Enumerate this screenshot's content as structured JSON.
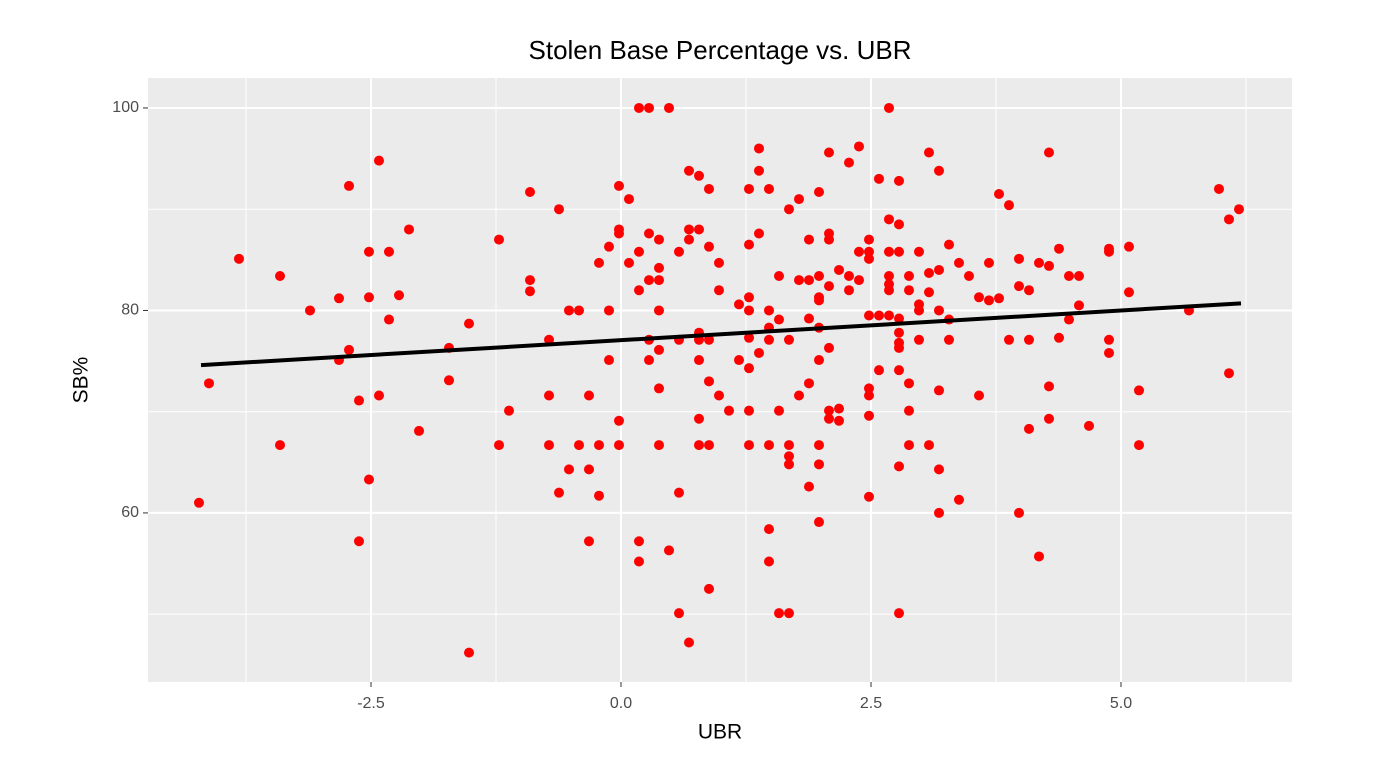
{
  "chart_data": {
    "type": "scatter",
    "title": "Stolen Base Percentage vs. UBR",
    "x_label": "UBR",
    "y_label": "SB%",
    "x": [
      -4.22,
      -4.12,
      -3.82,
      -3.41,
      -3.41,
      -3.11,
      -2.82,
      -2.82,
      -2.72,
      -2.72,
      -2.62,
      -2.62,
      -2.52,
      -2.52,
      -2.52,
      -2.42,
      -2.42,
      -2.32,
      -2.32,
      -2.22,
      -2.12,
      -2.02,
      -1.72,
      -1.72,
      -1.52,
      -1.52,
      -1.22,
      -1.22,
      -1.12,
      -0.91,
      -0.91,
      -0.91,
      -0.72,
      -0.72,
      -0.72,
      -0.62,
      -0.62,
      -0.52,
      -0.52,
      -0.42,
      -0.42,
      -0.32,
      -0.32,
      -0.32,
      -0.22,
      -0.22,
      -0.22,
      -0.12,
      -0.12,
      -0.12,
      -0.02,
      -0.02,
      -0.02,
      -0.02,
      -0.02,
      0.08,
      0.08,
      0.18,
      0.18,
      0.18,
      0.18,
      0.18,
      0.28,
      0.28,
      0.28,
      0.28,
      0.28,
      0.38,
      0.38,
      0.38,
      0.38,
      0.38,
      0.38,
      0.38,
      0.48,
      0.48,
      0.58,
      0.58,
      0.58,
      0.58,
      0.68,
      0.68,
      0.68,
      0.68,
      0.78,
      0.78,
      0.78,
      0.78,
      0.78,
      0.78,
      0.78,
      0.88,
      0.88,
      0.88,
      0.88,
      0.88,
      0.88,
      0.98,
      0.98,
      0.98,
      1.08,
      1.18,
      1.18,
      1.28,
      1.28,
      1.28,
      1.28,
      1.28,
      1.28,
      1.28,
      1.28,
      1.38,
      1.38,
      1.38,
      1.38,
      1.48,
      1.48,
      1.48,
      1.48,
      1.48,
      1.48,
      1.48,
      1.58,
      1.58,
      1.58,
      1.58,
      1.68,
      1.68,
      1.68,
      1.68,
      1.68,
      1.68,
      1.78,
      1.78,
      1.78,
      1.88,
      1.88,
      1.88,
      1.88,
      1.88,
      1.98,
      1.98,
      1.98,
      1.98,
      1.98,
      1.98,
      1.98,
      1.98,
      1.98,
      2.08,
      2.08,
      2.08,
      2.08,
      2.08,
      2.08,
      2.08,
      2.18,
      2.18,
      2.18,
      2.28,
      2.28,
      2.28,
      2.38,
      2.38,
      2.38,
      2.48,
      2.48,
      2.48,
      2.48,
      2.48,
      2.48,
      2.48,
      2.48,
      2.58,
      2.58,
      2.58,
      2.68,
      2.68,
      2.68,
      2.68,
      2.68,
      2.68,
      2.68,
      2.78,
      2.78,
      2.78,
      2.78,
      2.78,
      2.78,
      2.78,
      2.78,
      2.78,
      2.78,
      2.88,
      2.88,
      2.88,
      2.88,
      2.88,
      2.98,
      2.98,
      2.98,
      2.98,
      3.08,
      3.08,
      3.08,
      3.08,
      3.18,
      3.18,
      3.18,
      3.18,
      3.18,
      3.18,
      3.28,
      3.28,
      3.28,
      3.38,
      3.38,
      3.48,
      3.58,
      3.58,
      3.68,
      3.68,
      3.78,
      3.78,
      3.88,
      3.88,
      3.98,
      3.98,
      3.98,
      4.08,
      4.08,
      4.08,
      4.18,
      4.18,
      4.28,
      4.28,
      4.28,
      4.28,
      4.38,
      4.38,
      4.48,
      4.48,
      4.58,
      4.58,
      4.68,
      4.88,
      4.88,
      4.88,
      4.88,
      5.08,
      5.08,
      5.18,
      5.18,
      5.68,
      5.98,
      6.08,
      6.08,
      6.18
    ],
    "values": [
      61.0,
      72.8,
      85.1,
      83.4,
      66.7,
      80.0,
      81.2,
      75.1,
      92.3,
      76.1,
      71.1,
      57.2,
      85.8,
      81.3,
      63.3,
      71.6,
      94.8,
      85.8,
      79.1,
      81.5,
      88.0,
      68.1,
      76.3,
      73.1,
      78.7,
      46.2,
      87.0,
      66.7,
      70.1,
      91.7,
      83.0,
      81.9,
      77.1,
      71.6,
      66.7,
      90.0,
      62.0,
      80.0,
      64.3,
      80.0,
      66.7,
      71.6,
      64.3,
      57.2,
      84.7,
      66.7,
      61.7,
      86.3,
      80.0,
      75.1,
      92.3,
      88.0,
      87.6,
      69.1,
      66.7,
      91.0,
      84.7,
      100,
      85.8,
      82.0,
      57.2,
      55.2,
      100,
      87.6,
      83.0,
      77.1,
      75.1,
      87.0,
      84.2,
      83.0,
      80.0,
      76.1,
      72.3,
      66.7,
      100,
      56.3,
      85.8,
      77.1,
      62.0,
      50.1,
      93.8,
      88.0,
      87.0,
      47.2,
      93.3,
      88.0,
      77.8,
      77.1,
      75.1,
      69.3,
      66.7,
      92.0,
      86.3,
      77.1,
      73.0,
      66.7,
      52.5,
      84.7,
      82.0,
      71.6,
      70.1,
      80.6,
      75.1,
      92.0,
      86.5,
      81.3,
      80.0,
      77.3,
      74.3,
      70.1,
      66.7,
      96.0,
      93.8,
      87.6,
      75.8,
      92.0,
      80.0,
      78.3,
      77.1,
      66.7,
      58.4,
      55.2,
      83.4,
      79.1,
      70.1,
      50.1,
      90.0,
      77.1,
      66.7,
      65.6,
      64.8,
      50.1,
      91.0,
      83.0,
      71.6,
      83.0,
      79.2,
      72.8,
      62.6,
      87.0,
      91.7,
      83.4,
      81.3,
      81.0,
      78.3,
      75.1,
      66.7,
      64.8,
      59.1,
      95.6,
      87.6,
      87.0,
      82.4,
      76.3,
      70.1,
      69.3,
      84.0,
      70.3,
      69.1,
      94.6,
      83.4,
      82.0,
      96.2,
      85.8,
      83.0,
      87.0,
      85.8,
      85.1,
      79.5,
      72.3,
      71.6,
      69.6,
      61.6,
      93.0,
      79.5,
      74.1,
      100,
      89.0,
      85.8,
      83.4,
      82.6,
      82.0,
      79.5,
      92.8,
      88.5,
      85.8,
      79.2,
      77.8,
      76.8,
      76.3,
      74.1,
      64.6,
      50.1,
      83.4,
      82.0,
      72.8,
      70.1,
      66.7,
      85.8,
      80.6,
      80.0,
      77.1,
      83.7,
      81.8,
      95.6,
      66.7,
      93.8,
      84.0,
      80.0,
      72.1,
      64.3,
      60.0,
      86.5,
      79.1,
      77.1,
      84.7,
      61.3,
      83.4,
      81.3,
      71.6,
      84.7,
      81.0,
      91.5,
      81.2,
      90.4,
      77.1,
      85.1,
      82.4,
      60.0,
      82.0,
      77.1,
      68.3,
      84.7,
      55.7,
      95.6,
      84.4,
      72.5,
      69.3,
      86.1,
      77.3,
      83.4,
      79.1,
      83.4,
      80.5,
      68.6,
      86.1,
      85.8,
      77.1,
      75.8,
      86.3,
      81.8,
      72.1,
      66.7,
      80.0,
      92.0,
      89.0,
      73.8,
      90.0
    ],
    "color": "#ff0000",
    "trend_line": {
      "x": [
        -4.2,
        6.2
      ],
      "y": [
        74.6,
        80.7
      ],
      "color": "#000000"
    },
    "xlim": [
      -4.73,
      6.71
    ],
    "ylim": [
      43.3,
      102.96
    ],
    "xticks": [
      -2.5,
      {
        "value": 0,
        "label": "0.0"
      },
      2.5,
      {
        "value": 5,
        "label": "5.0"
      }
    ],
    "yticks": [
      60,
      80,
      100
    ],
    "grid": true,
    "minor_grid": true
  }
}
